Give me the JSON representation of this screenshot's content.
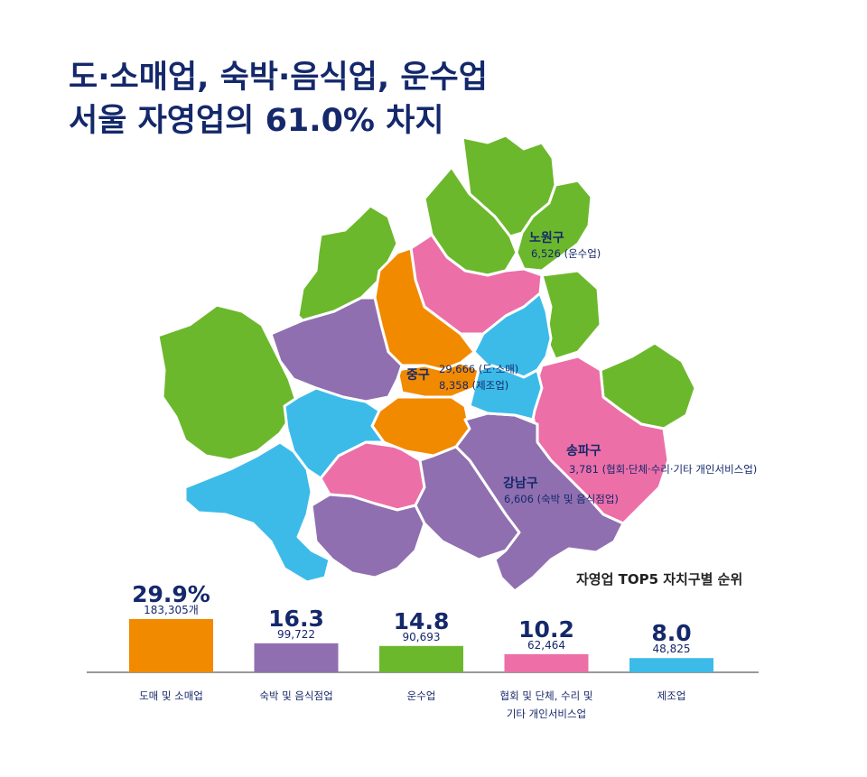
{
  "title": {
    "line1": "도·소매업, 숙박·음식업, 운수업",
    "line2": "서울 자영업의 61.0% 차지"
  },
  "colors": {
    "retail": "#f28a00",
    "lodging": "#8f6fb0",
    "transport": "#6cb82c",
    "association": "#ec6fa8",
    "manufacturing": "#3cbbe9",
    "text": "#14286b"
  },
  "map": {
    "labels": [
      {
        "name": "노원구",
        "value": "6,526 (운수업)"
      },
      {
        "name": "중구",
        "value": "29,666 (도·소매)",
        "value2": "8,358 (제조업)"
      },
      {
        "name": "송파구",
        "value": "3,781 (협회·단체·수리·기타 개인서비스업)"
      },
      {
        "name": "강남구",
        "value": "6,606 (숙박 및 음식점업)"
      }
    ]
  },
  "ranking_title": "자영업 TOP5 자치구별 순위",
  "chart_data": {
    "type": "bar",
    "categories": [
      "도매  및  소매업",
      "숙박 및 음식점업",
      "운수업",
      "협회 및 단체, 수리 및\n기타 개인서비스업",
      "제조업"
    ],
    "values": [
      29.9,
      16.3,
      14.8,
      10.2,
      8.0
    ],
    "value_labels": [
      "29.9%",
      "16.3",
      "14.8",
      "10.2",
      "8.0"
    ],
    "counts": [
      "183,305개",
      "99,722",
      "90,693",
      "62,464",
      "48,825"
    ],
    "bar_colors": [
      "#f28a00",
      "#8f6fb0",
      "#6cb82c",
      "#ec6fa8",
      "#3cbbe9"
    ],
    "ylim": [
      0,
      29.9
    ]
  }
}
